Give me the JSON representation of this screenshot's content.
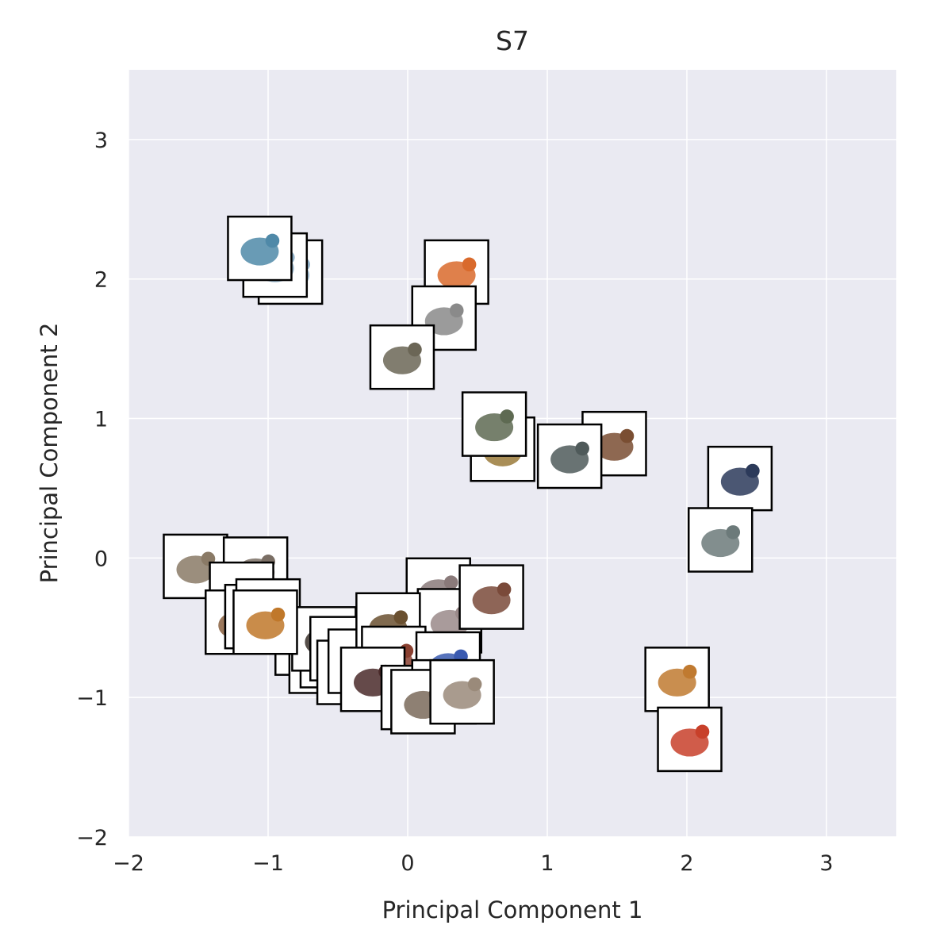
{
  "chart_data": {
    "type": "scatter",
    "title": "S7",
    "xlabel": "Principal Component 1",
    "ylabel": "Principal Component 2",
    "xlim": [
      -2,
      3.5
    ],
    "ylim": [
      -2,
      3.5
    ],
    "xticks": [
      "−2",
      "−1",
      "0",
      "1",
      "2",
      "3"
    ],
    "xtick_values": [
      -2,
      -1,
      0,
      1,
      2,
      3
    ],
    "yticks": [
      "−2",
      "−1",
      "0",
      "1",
      "2",
      "3"
    ],
    "ytick_values": [
      -2,
      -1,
      0,
      1,
      2,
      3
    ],
    "grid": true,
    "background": "#eaeaf2",
    "grid_color": "#ffffff",
    "marker": "image-thumbnail",
    "points": [
      {
        "x": -0.84,
        "y": 2.05,
        "icon": "fish-icon"
      },
      {
        "x": -0.95,
        "y": 2.1,
        "icon": "fish-icon"
      },
      {
        "x": -1.06,
        "y": 2.22,
        "icon": "whale-icon"
      },
      {
        "x": 0.35,
        "y": 2.05,
        "icon": "squirrel-icon"
      },
      {
        "x": 0.26,
        "y": 1.72,
        "icon": "feather-icon"
      },
      {
        "x": -0.04,
        "y": 1.44,
        "icon": "crocodile-icon"
      },
      {
        "x": 0.68,
        "y": 0.78,
        "icon": "frog-icon"
      },
      {
        "x": 0.62,
        "y": 0.96,
        "icon": "snake-icon"
      },
      {
        "x": 1.48,
        "y": 0.82,
        "icon": "snail-icon"
      },
      {
        "x": 1.16,
        "y": 0.73,
        "icon": "lizard-icon"
      },
      {
        "x": 2.38,
        "y": 0.57,
        "icon": "insect-icon"
      },
      {
        "x": 2.24,
        "y": 0.13,
        "icon": "mosquito-icon"
      },
      {
        "x": -1.52,
        "y": -0.06,
        "icon": "monkey-icon"
      },
      {
        "x": -1.09,
        "y": -0.08,
        "icon": "elephant-icon"
      },
      {
        "x": -1.19,
        "y": -0.26,
        "icon": "monkey-icon"
      },
      {
        "x": -1.22,
        "y": -0.46,
        "icon": "horse-icon"
      },
      {
        "x": -1.08,
        "y": -0.42,
        "icon": "lion-icon"
      },
      {
        "x": -1.0,
        "y": -0.38,
        "icon": "deer-icon"
      },
      {
        "x": -0.72,
        "y": -0.61,
        "icon": "cow-icon"
      },
      {
        "x": -0.62,
        "y": -0.74,
        "icon": "pig-icon"
      },
      {
        "x": -0.54,
        "y": -0.7,
        "icon": "dog-icon"
      },
      {
        "x": -0.6,
        "y": -0.58,
        "icon": "bear-icon"
      },
      {
        "x": -0.47,
        "y": -0.65,
        "icon": "goat-icon"
      },
      {
        "x": -0.42,
        "y": -0.82,
        "icon": "sheep-icon"
      },
      {
        "x": -0.34,
        "y": -0.74,
        "icon": "cat-icon"
      },
      {
        "x": -1.02,
        "y": -0.46,
        "icon": "tiger-icon"
      },
      {
        "x": 0.22,
        "y": -0.23,
        "icon": "rat-icon"
      },
      {
        "x": 0.3,
        "y": -0.45,
        "icon": "mouse-icon"
      },
      {
        "x": 0.6,
        "y": -0.28,
        "icon": "bat-icon"
      },
      {
        "x": -0.14,
        "y": -0.48,
        "icon": "duck-icon"
      },
      {
        "x": -0.1,
        "y": -0.72,
        "icon": "chicken-icon"
      },
      {
        "x": -0.25,
        "y": -0.87,
        "icon": "turkey-icon"
      },
      {
        "x": 0.04,
        "y": -1.0,
        "icon": "pigeon-icon"
      },
      {
        "x": 0.29,
        "y": -0.76,
        "icon": "bluebird-icon"
      },
      {
        "x": 0.26,
        "y": -0.96,
        "icon": "bluebird-icon"
      },
      {
        "x": 0.11,
        "y": -1.03,
        "icon": "owl-icon"
      },
      {
        "x": 0.39,
        "y": -0.96,
        "icon": "sparrow-icon"
      },
      {
        "x": 1.93,
        "y": -0.87,
        "icon": "butterfly-icon"
      },
      {
        "x": 2.02,
        "y": -1.3,
        "icon": "ladybug-icon"
      }
    ]
  }
}
